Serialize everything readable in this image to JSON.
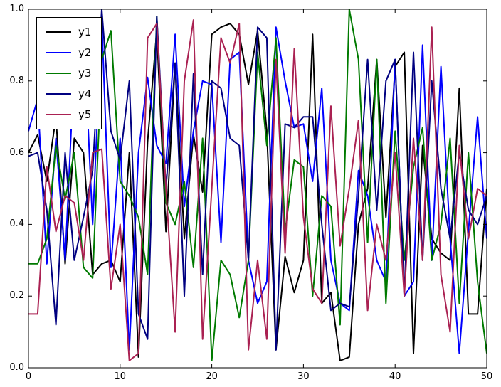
{
  "chart_data": {
    "type": "line",
    "title": "",
    "grid": false,
    "legend_position": "upper-left",
    "xlim": [
      0,
      50
    ],
    "ylim": [
      0.0,
      1.0
    ],
    "xticks": {
      "values": [
        0,
        10,
        20,
        30,
        40,
        50
      ],
      "labels": [
        "0",
        "10",
        "20",
        "30",
        "40",
        "50"
      ]
    },
    "yticks": {
      "values": [
        0.0,
        0.2,
        0.4,
        0.6,
        0.8,
        1.0
      ],
      "labels": [
        "0.0",
        "0.2",
        "0.4",
        "0.6",
        "0.8",
        "1.0"
      ]
    },
    "x": [
      0,
      1,
      2,
      3,
      4,
      5,
      6,
      7,
      8,
      9,
      10,
      11,
      12,
      13,
      14,
      15,
      16,
      17,
      18,
      19,
      20,
      21,
      22,
      23,
      24,
      25,
      26,
      27,
      28,
      29,
      30,
      31,
      32,
      33,
      34,
      35,
      36,
      37,
      38,
      39,
      40,
      41,
      42,
      43,
      44,
      45,
      46,
      47,
      48,
      49,
      50
    ],
    "series": [
      {
        "name": "y1",
        "color": "#000000",
        "values": [
          0.6,
          0.65,
          0.52,
          0.7,
          0.29,
          0.64,
          0.6,
          0.26,
          0.29,
          0.3,
          0.24,
          0.6,
          0.03,
          0.63,
          0.94,
          0.38,
          0.85,
          0.36,
          0.65,
          0.49,
          0.93,
          0.95,
          0.96,
          0.93,
          0.79,
          0.94,
          0.66,
          0.05,
          0.31,
          0.21,
          0.3,
          0.93,
          0.18,
          0.21,
          0.02,
          0.03,
          0.4,
          0.5,
          0.86,
          0.42,
          0.84,
          0.88,
          0.04,
          0.62,
          0.36,
          0.32,
          0.3,
          0.78,
          0.15,
          0.15,
          0.5
        ]
      },
      {
        "name": "y2",
        "color": "#0000ff",
        "values": [
          0.66,
          0.75,
          0.29,
          0.64,
          0.3,
          0.85,
          0.95,
          0.4,
          0.97,
          0.28,
          0.64,
          0.05,
          0.6,
          0.81,
          0.62,
          0.57,
          0.93,
          0.45,
          0.66,
          0.8,
          0.79,
          0.35,
          0.86,
          0.88,
          0.3,
          0.18,
          0.24,
          0.95,
          0.8,
          0.67,
          0.68,
          0.52,
          0.78,
          0.3,
          0.18,
          0.16,
          0.55,
          0.48,
          0.3,
          0.24,
          0.86,
          0.2,
          0.24,
          0.9,
          0.3,
          0.84,
          0.36,
          0.04,
          0.38,
          0.7,
          0.36
        ]
      },
      {
        "name": "y3",
        "color": "#007a00",
        "values": [
          0.29,
          0.29,
          0.36,
          0.62,
          0.47,
          0.6,
          0.28,
          0.25,
          0.86,
          0.94,
          0.52,
          0.48,
          0.42,
          0.26,
          0.98,
          0.46,
          0.4,
          0.52,
          0.28,
          0.64,
          0.02,
          0.3,
          0.26,
          0.14,
          0.3,
          0.88,
          0.62,
          0.92,
          0.38,
          0.58,
          0.56,
          0.2,
          0.48,
          0.45,
          0.12,
          1.0,
          0.86,
          0.35,
          0.86,
          0.18,
          0.66,
          0.3,
          0.56,
          0.67,
          0.3,
          0.4,
          0.64,
          0.18,
          0.6,
          0.24,
          0.04
        ]
      },
      {
        "name": "y4",
        "color": "#000080",
        "values": [
          0.59,
          0.6,
          0.44,
          0.12,
          0.6,
          0.3,
          0.42,
          0.55,
          1.0,
          0.66,
          0.58,
          0.8,
          0.15,
          0.08,
          0.98,
          0.5,
          0.85,
          0.2,
          0.82,
          0.26,
          0.8,
          0.78,
          0.64,
          0.62,
          0.3,
          0.95,
          0.92,
          0.05,
          0.68,
          0.67,
          0.7,
          0.7,
          0.4,
          0.16,
          0.18,
          0.17,
          0.48,
          0.86,
          0.44,
          0.8,
          0.86,
          0.2,
          0.88,
          0.3,
          0.8,
          0.5,
          0.36,
          0.6,
          0.44,
          0.4,
          0.48
        ]
      },
      {
        "name": "y5",
        "color": "#aa2152",
        "values": [
          0.15,
          0.15,
          0.56,
          0.38,
          0.48,
          0.46,
          0.3,
          0.6,
          0.61,
          0.22,
          0.4,
          0.02,
          0.04,
          0.92,
          0.96,
          0.5,
          0.1,
          0.8,
          0.97,
          0.08,
          0.5,
          0.92,
          0.85,
          0.96,
          0.05,
          0.3,
          0.08,
          0.86,
          0.32,
          0.89,
          0.42,
          0.22,
          0.18,
          0.73,
          0.34,
          0.5,
          0.69,
          0.16,
          0.4,
          0.3,
          0.6,
          0.2,
          0.64,
          0.3,
          0.95,
          0.26,
          0.1,
          0.62,
          0.36,
          0.5,
          0.48
        ]
      }
    ]
  }
}
